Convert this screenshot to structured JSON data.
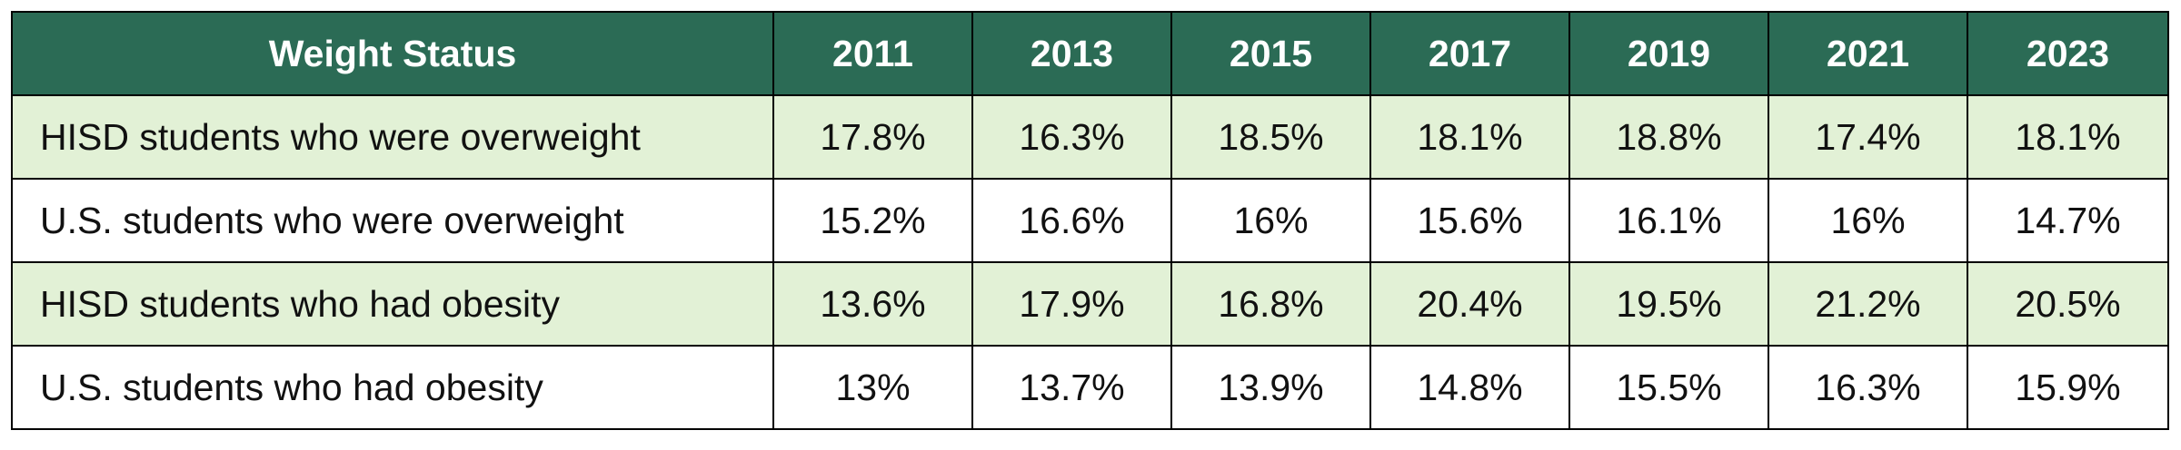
{
  "table": {
    "header_label": "Weight Status",
    "years": [
      "2011",
      "2013",
      "2015",
      "2017",
      "2019",
      "2021",
      "2023"
    ],
    "rows": [
      {
        "label": "HISD students who were overweight",
        "values": [
          "17.8%",
          "16.3%",
          "18.5%",
          "18.1%",
          "18.8%",
          "17.4%",
          "18.1%"
        ]
      },
      {
        "label": "U.S. students who were overweight",
        "values": [
          "15.2%",
          "16.6%",
          "16%",
          "15.6%",
          "16.1%",
          "16%",
          "14.7%"
        ]
      },
      {
        "label": "HISD students who had obesity",
        "values": [
          "13.6%",
          "17.9%",
          "16.8%",
          "20.4%",
          "19.5%",
          "21.2%",
          "20.5%"
        ]
      },
      {
        "label": "U.S. students who had obesity",
        "values": [
          "13%",
          "13.7%",
          "13.9%",
          "14.8%",
          "15.5%",
          "16.3%",
          "15.9%"
        ]
      }
    ]
  },
  "colors": {
    "header_background": "#2b6b55",
    "header_text": "#ffffff",
    "shaded_row": "#e2f1d6",
    "plain_row": "#ffffff",
    "border": "#000000"
  }
}
